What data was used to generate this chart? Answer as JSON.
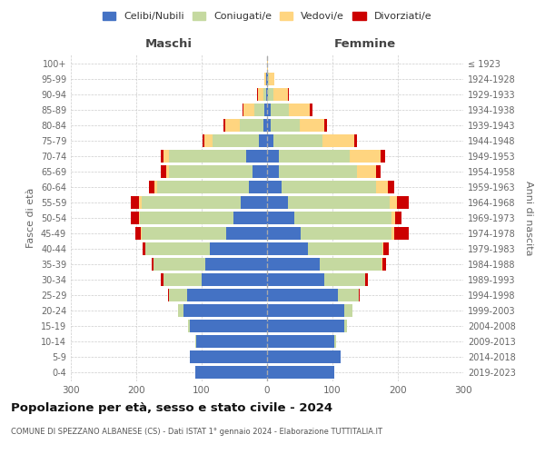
{
  "age_groups": [
    "0-4",
    "5-9",
    "10-14",
    "15-19",
    "20-24",
    "25-29",
    "30-34",
    "35-39",
    "40-44",
    "45-49",
    "50-54",
    "55-59",
    "60-64",
    "65-69",
    "70-74",
    "75-79",
    "80-84",
    "85-89",
    "90-94",
    "95-99",
    "100+"
  ],
  "birth_years": [
    "2019-2023",
    "2014-2018",
    "2009-2013",
    "2004-2008",
    "1999-2003",
    "1994-1998",
    "1989-1993",
    "1984-1988",
    "1979-1983",
    "1974-1978",
    "1969-1973",
    "1964-1968",
    "1959-1963",
    "1954-1958",
    "1949-1953",
    "1944-1948",
    "1939-1943",
    "1934-1938",
    "1929-1933",
    "1924-1928",
    "≤ 1923"
  ],
  "colors": {
    "celibi": "#4472C4",
    "coniugati": "#C5D9A0",
    "vedovi": "#FFD580",
    "divorziati": "#CC0000"
  },
  "maschi": {
    "celibi": [
      110,
      118,
      108,
      118,
      128,
      122,
      100,
      95,
      88,
      62,
      52,
      40,
      28,
      22,
      32,
      12,
      6,
      4,
      2,
      1,
      0
    ],
    "coniugati": [
      0,
      0,
      2,
      3,
      8,
      28,
      58,
      78,
      98,
      130,
      142,
      152,
      140,
      128,
      118,
      72,
      36,
      16,
      4,
      1,
      0
    ],
    "vedovi": [
      0,
      0,
      0,
      0,
      0,
      0,
      0,
      0,
      0,
      1,
      2,
      4,
      4,
      4,
      8,
      12,
      22,
      16,
      8,
      2,
      0
    ],
    "divorziati": [
      0,
      0,
      0,
      0,
      0,
      2,
      4,
      4,
      4,
      8,
      12,
      12,
      8,
      8,
      4,
      3,
      2,
      2,
      1,
      0,
      0
    ]
  },
  "femmine": {
    "celibi": [
      103,
      113,
      103,
      118,
      118,
      108,
      88,
      80,
      62,
      52,
      42,
      32,
      22,
      18,
      18,
      10,
      5,
      5,
      2,
      1,
      0
    ],
    "coniugati": [
      0,
      0,
      2,
      4,
      12,
      32,
      62,
      95,
      115,
      138,
      148,
      155,
      145,
      120,
      108,
      75,
      45,
      28,
      8,
      2,
      0
    ],
    "vedovi": [
      0,
      0,
      0,
      0,
      0,
      0,
      0,
      1,
      1,
      4,
      6,
      12,
      18,
      28,
      48,
      48,
      38,
      32,
      22,
      8,
      2
    ],
    "divorziati": [
      0,
      0,
      0,
      0,
      1,
      2,
      4,
      6,
      8,
      22,
      10,
      18,
      10,
      8,
      6,
      4,
      3,
      4,
      1,
      0,
      0
    ]
  },
  "title": "Popolazione per età, sesso e stato civile - 2024",
  "subtitle": "COMUNE DI SPEZZANO ALBANESE (CS) - Dati ISTAT 1° gennaio 2024 - Elaborazione TUTTITALIA.IT",
  "xlabel_left": "Maschi",
  "xlabel_right": "Femmine",
  "ylabel_left": "Fasce di età",
  "ylabel_right": "Anni di nascita",
  "xlim": 300,
  "legend_labels": [
    "Celibi/Nubili",
    "Coniugati/e",
    "Vedovi/e",
    "Divorziati/e"
  ],
  "bg_color": "#FFFFFF",
  "grid_color": "#CCCCCC"
}
